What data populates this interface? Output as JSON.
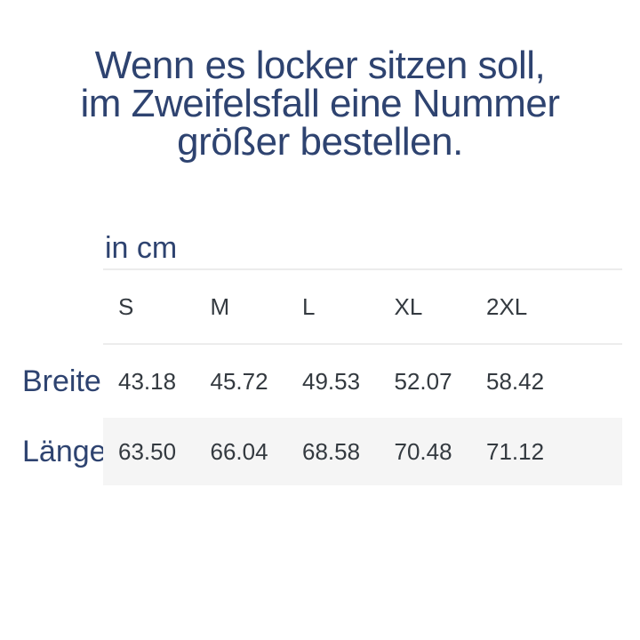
{
  "title": {
    "text": "Wenn es locker sitzen soll, im Zweifelsfall eine Nummer größer bestellen.",
    "lines": [
      "Wenn es locker sitzen soll,",
      "im Zweifelsfall eine Nummer",
      "größer bestellen."
    ],
    "color": "#2e4370"
  },
  "size_table": {
    "unit_label": "in cm",
    "columns": [
      "S",
      "M",
      "L",
      "XL",
      "2XL"
    ],
    "rows": [
      {
        "label": "Breite",
        "values": [
          "43.18",
          "45.72",
          "49.53",
          "52.07",
          "58.42"
        ]
      },
      {
        "label": "Länge",
        "values": [
          "63.50",
          "66.04",
          "68.58",
          "70.48",
          "71.12"
        ]
      }
    ],
    "colors": {
      "heading_text": "#2e4370",
      "data_text": "#343a40",
      "divider": "#ececec",
      "stripe_background": "#f5f5f5"
    }
  },
  "chart_data": {
    "type": "table",
    "title": "Wenn es locker sitzen soll, im Zweifelsfall eine Nummer größer bestellen.",
    "unit": "in cm",
    "columns": [
      "S",
      "M",
      "L",
      "XL",
      "2XL"
    ],
    "rows": [
      {
        "label": "Breite",
        "values": [
          43.18,
          45.72,
          49.53,
          52.07,
          58.42
        ]
      },
      {
        "label": "Länge",
        "values": [
          63.5,
          66.04,
          68.58,
          70.48,
          71.12
        ]
      }
    ],
    "notes": "Striped background on Länge data row; dividers above and below size header row"
  }
}
